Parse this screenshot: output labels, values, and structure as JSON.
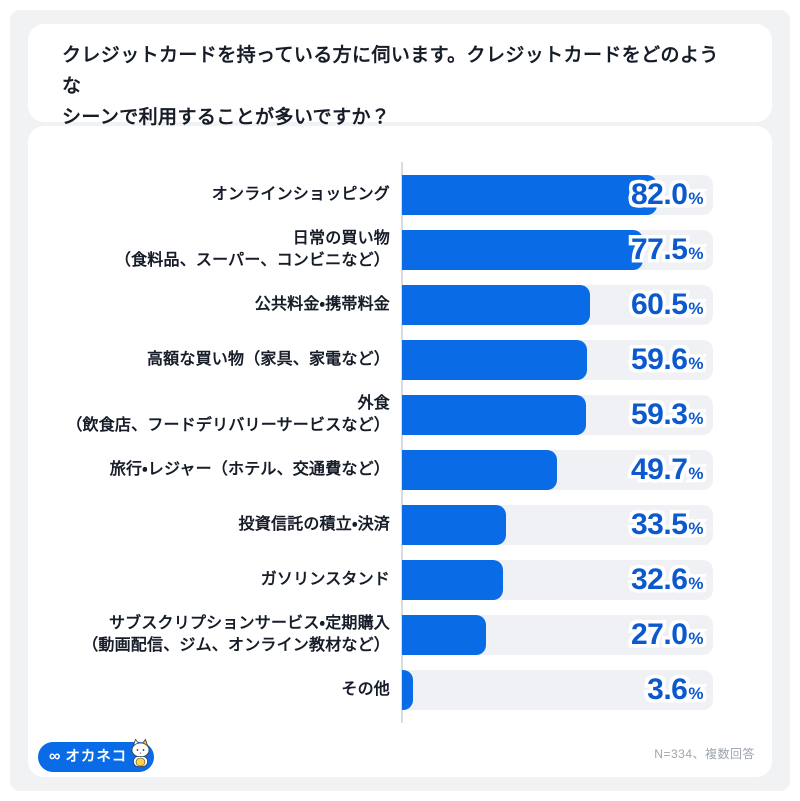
{
  "page": {
    "title": "クレジットカードを持っている方に伺います。クレジットカードをどのような\nシーンで利用することが多いですか？",
    "footnote": "N=334、複数回答",
    "logo": {
      "mark": "∞",
      "text": "オカネコ"
    },
    "colors": {
      "bar": "#0A6BE6",
      "value_text": "#0C59CE",
      "track": "#EFF1F4",
      "panel_bg": "#F1F2F4",
      "axis": "#D8DBE0",
      "label_text": "#161D29",
      "footnote_text": "#9EA5AE"
    }
  },
  "chart_data": {
    "type": "bar",
    "orientation": "horizontal",
    "unit": "%",
    "xlim": [
      0,
      100
    ],
    "grid": false,
    "legend": "none",
    "title": "クレジットカードを持っている方に伺います。クレジットカードをどのようなシーンで利用することが多いですか？",
    "categories": [
      [
        "オンラインショッピング"
      ],
      [
        "日常の買い物",
        "（食料品、スーパー、コンビニなど）"
      ],
      [
        "公共料金・携帯料金"
      ],
      [
        "高額な買い物（家具、家電など）"
      ],
      [
        "外食",
        "（飲食店、フードデリバリーサービスなど）"
      ],
      [
        "旅行・レジャー（ホテル、交通費など）"
      ],
      [
        "投資信託の積立・決済"
      ],
      [
        "ガソリンスタンド"
      ],
      [
        "サブスクリプションサービス・定期購入",
        "（動画配信、ジム、オンライン教材など）"
      ],
      [
        "その他"
      ]
    ],
    "values": [
      82.0,
      77.5,
      60.5,
      59.6,
      59.3,
      49.7,
      33.5,
      32.6,
      27.0,
      3.6
    ]
  }
}
